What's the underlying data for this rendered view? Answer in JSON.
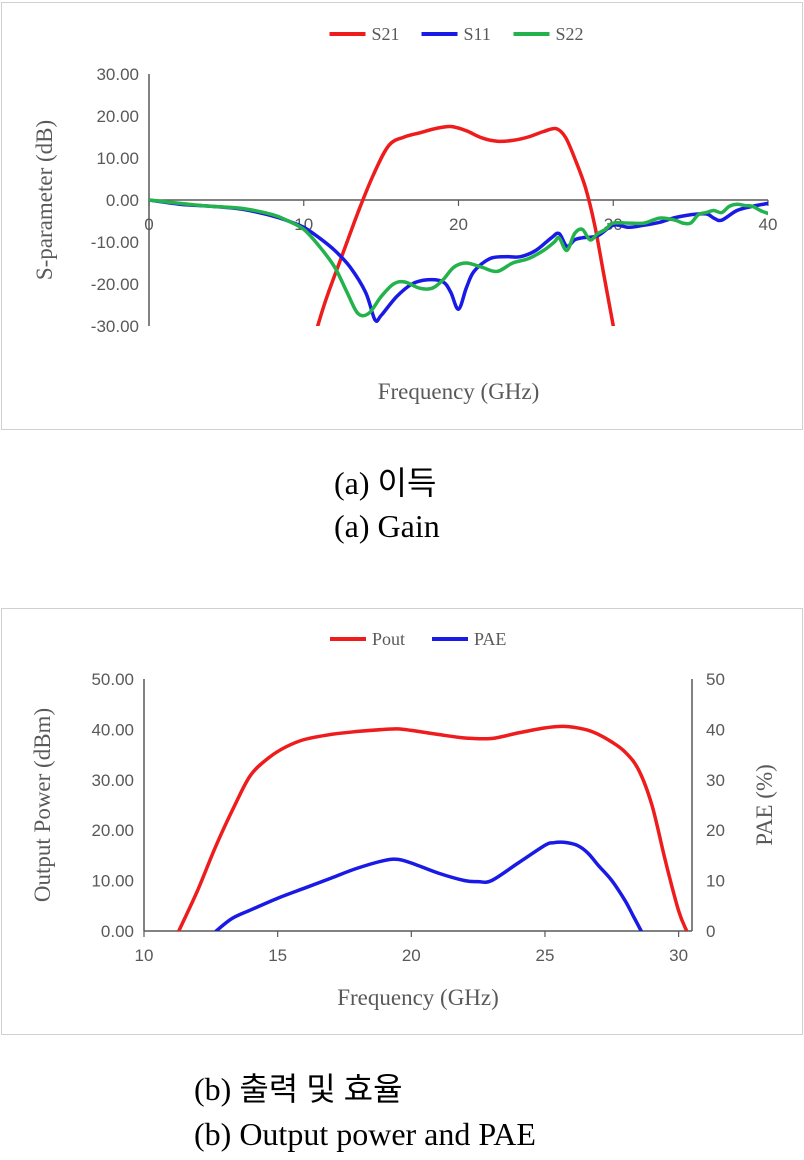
{
  "captions": {
    "a_korean": "(a) 이득",
    "a_english": "(a) Gain",
    "b_korean": "(b) 출력 및 효율",
    "b_english": "(b) Output power and PAE"
  },
  "chart_data": [
    {
      "type": "line",
      "xlabel": "Frequency (GHz)",
      "ylabel": "S-parameter (dB)",
      "xlim": [
        0,
        40
      ],
      "ylim": [
        -30,
        30
      ],
      "xticks": [
        0,
        10,
        20,
        30,
        40
      ],
      "xtick_labels": [
        "0",
        "10",
        "20",
        "30",
        "40"
      ],
      "yticks": [
        30,
        20,
        10,
        0,
        -10,
        -20,
        -30
      ],
      "ytick_labels": [
        "30.00",
        "20.00",
        "10.00",
        "0.00",
        "-10.00",
        "-20.00",
        "-30.00"
      ],
      "grid": false,
      "legend": "top-center",
      "series": [
        {
          "name": "S21",
          "color": "#ee1c1c",
          "x": [
            10.9,
            11.5,
            12.5,
            13.5,
            14.5,
            15.5,
            16.5,
            17.5,
            18.5,
            19.5,
            20.5,
            21.5,
            22.5,
            23.5,
            24.5,
            25.5,
            26.3,
            26.9,
            27.5,
            28.2,
            28.8,
            29.4,
            30.0
          ],
          "y": [
            -30,
            -23,
            -13,
            -3,
            6,
            13,
            15,
            16,
            17,
            17.5,
            16.5,
            14.8,
            14,
            14.2,
            15,
            16.3,
            17,
            15,
            10,
            3,
            -6,
            -18,
            -30
          ]
        },
        {
          "name": "S11",
          "color": "#1a1ae6",
          "x": [
            0,
            2,
            4,
            6,
            8,
            9,
            10,
            11,
            12,
            13,
            14,
            14.6,
            15,
            16,
            17,
            18,
            19,
            19.5,
            20,
            20.5,
            21,
            22,
            23,
            24,
            25,
            26,
            26.5,
            27,
            27.5,
            28,
            29,
            30,
            31,
            32,
            33,
            34,
            35,
            36,
            36.5,
            37,
            38,
            39,
            40
          ],
          "y": [
            0,
            -1,
            -1.5,
            -2.2,
            -3.8,
            -5,
            -6.5,
            -9,
            -12,
            -16,
            -22,
            -28.5,
            -27.5,
            -23,
            -20,
            -19,
            -19.5,
            -22,
            -26,
            -21,
            -17,
            -14,
            -13.5,
            -13.5,
            -12,
            -9,
            -8,
            -11,
            -9.5,
            -9,
            -8.5,
            -6,
            -6.5,
            -6,
            -5.3,
            -4.2,
            -3.5,
            -3.3,
            -4.3,
            -4.8,
            -2.5,
            -1.5,
            -0.8
          ]
        },
        {
          "name": "S22",
          "color": "#24b24c",
          "x": [
            0,
            2,
            4,
            6,
            8,
            9,
            10,
            11,
            12,
            12.8,
            13.5,
            14.2,
            15,
            15.8,
            16.5,
            17.5,
            18.3,
            19,
            19.7,
            20.5,
            21.5,
            22.5,
            23.5,
            24.5,
            25.5,
            26.2,
            26.5,
            27,
            27.5,
            28,
            28.5,
            29,
            29.5,
            30,
            31,
            32,
            33,
            34,
            34.5,
            35,
            35.5,
            36,
            36.5,
            37,
            37.5,
            38,
            38.5,
            39,
            39.5,
            40
          ],
          "y": [
            0,
            -0.8,
            -1.5,
            -2,
            -3.5,
            -5,
            -7,
            -11,
            -16,
            -22,
            -27,
            -27,
            -23,
            -20,
            -19.5,
            -21,
            -21,
            -19,
            -16,
            -15,
            -16,
            -17,
            -15,
            -14,
            -12,
            -10,
            -9,
            -12,
            -8,
            -7,
            -9.5,
            -8,
            -7,
            -5.5,
            -5.5,
            -5.5,
            -4.3,
            -4.8,
            -5.5,
            -5.5,
            -3.5,
            -3,
            -2.5,
            -3,
            -1.5,
            -1,
            -1.3,
            -1.5,
            -2.5,
            -3.2
          ]
        }
      ]
    },
    {
      "type": "line",
      "xlabel": "Frequency (GHz)",
      "ylabel": "Output Power (dBm)",
      "y2label": "PAE (%)",
      "xlim": [
        10,
        30.5
      ],
      "ylim": [
        0,
        50
      ],
      "y2lim": [
        0,
        50
      ],
      "xticks": [
        10,
        15,
        20,
        25,
        30
      ],
      "xtick_labels": [
        "10",
        "15",
        "20",
        "25",
        "30"
      ],
      "yticks": [
        50,
        40,
        30,
        20,
        10,
        0
      ],
      "ytick_labels": [
        "50.00",
        "40.00",
        "30.00",
        "20.00",
        "10.00",
        "0.00"
      ],
      "y2ticks": [
        50,
        40,
        30,
        20,
        10,
        0
      ],
      "y2tick_labels": [
        "50",
        "40",
        "30",
        "20",
        "10",
        "0"
      ],
      "grid": false,
      "legend": "top-center",
      "series": [
        {
          "name": "Pout",
          "color": "#ee1c1c",
          "axis": "left",
          "x": [
            11.3,
            12,
            12.7,
            13.4,
            14,
            14.7,
            15.3,
            16,
            17,
            18,
            19,
            19.5,
            20,
            21,
            22,
            23,
            24,
            25,
            25.7,
            26.5,
            27,
            27.5,
            28,
            28.5,
            29,
            29.5,
            30,
            30.3
          ],
          "y": [
            0,
            8,
            17,
            25,
            31,
            34.5,
            36.5,
            38,
            39,
            39.6,
            40,
            40.1,
            39.8,
            39,
            38.3,
            38.2,
            39.3,
            40.3,
            40.6,
            40,
            39,
            37.5,
            35.5,
            32,
            25,
            14,
            4,
            0
          ]
        },
        {
          "name": "PAE",
          "color": "#1a1ae6",
          "axis": "right",
          "x": [
            12.7,
            13.3,
            14,
            15,
            16,
            17,
            18,
            19,
            19.5,
            20,
            21,
            22,
            22.5,
            23,
            24,
            25,
            25.3,
            25.7,
            26.2,
            26.6,
            27,
            27.5,
            28,
            28.3,
            28.6
          ],
          "y": [
            0,
            2.5,
            4.2,
            6.5,
            8.5,
            10.5,
            12.5,
            14,
            14.2,
            13.5,
            11.5,
            10,
            9.8,
            10,
            13.5,
            17,
            17.5,
            17.6,
            17,
            15.5,
            13,
            10,
            6,
            3,
            0
          ]
        }
      ]
    }
  ]
}
